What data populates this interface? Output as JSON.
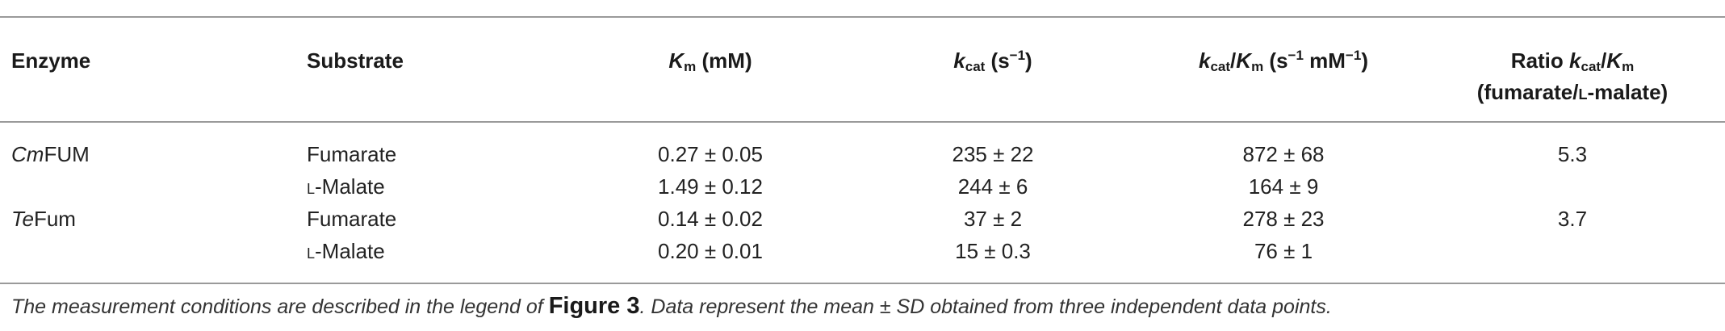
{
  "table": {
    "headers": {
      "enzyme": "Enzyme",
      "substrate": "Substrate",
      "km": {
        "symbol": "K",
        "sub": "m",
        "unit": " (mM)"
      },
      "kcat": {
        "symbol": "k",
        "sub": "cat",
        "unit_pre": " (s",
        "unit_sup": "−1",
        "unit_post": ")"
      },
      "kcat_km": {
        "symbol1": "k",
        "sub1": "cat",
        "slash": "/",
        "symbol2": "K",
        "sub2": "m",
        "unit_pre": " (s",
        "unit_sup1": "−1",
        "unit_mid": " mM",
        "unit_sup2": "−1",
        "unit_post": ")"
      },
      "ratio": {
        "line1_pre": "Ratio ",
        "symbol1": "k",
        "sub1": "cat",
        "slash": "/",
        "symbol2": "K",
        "sub2": "m",
        "line2_pre": "(fumarate/",
        "line2_smallcaps": "l",
        "line2_post": "-malate)"
      }
    },
    "rows": [
      {
        "enzyme_ital": "Cm",
        "enzyme_rest": "FUM",
        "substrate_sc": "",
        "substrate": "Fumarate",
        "km": "0.27 ± 0.05",
        "kcat": "235 ± 22",
        "kcat_km": "872 ± 68",
        "ratio": "5.3"
      },
      {
        "enzyme_ital": "",
        "enzyme_rest": "",
        "substrate_sc": "l",
        "substrate": "-Malate",
        "km": "1.49 ± 0.12",
        "kcat": "244 ± 6",
        "kcat_km": "164 ± 9",
        "ratio": ""
      },
      {
        "enzyme_ital": "Te",
        "enzyme_rest": "Fum",
        "substrate_sc": "",
        "substrate": "Fumarate",
        "km": "0.14 ± 0.02",
        "kcat": "37 ± 2",
        "kcat_km": "278 ± 23",
        "ratio": "3.7"
      },
      {
        "enzyme_ital": "",
        "enzyme_rest": "",
        "substrate_sc": "l",
        "substrate": "-Malate",
        "km": "0.20 ± 0.01",
        "kcat": "15 ± 0.3",
        "kcat_km": "76 ± 1",
        "ratio": ""
      }
    ]
  },
  "footnote": {
    "pre": "The measurement conditions are described in the legend of ",
    "figref": "Figure 3",
    "post": ". Data represent the mean ± SD obtained from three independent data points."
  }
}
